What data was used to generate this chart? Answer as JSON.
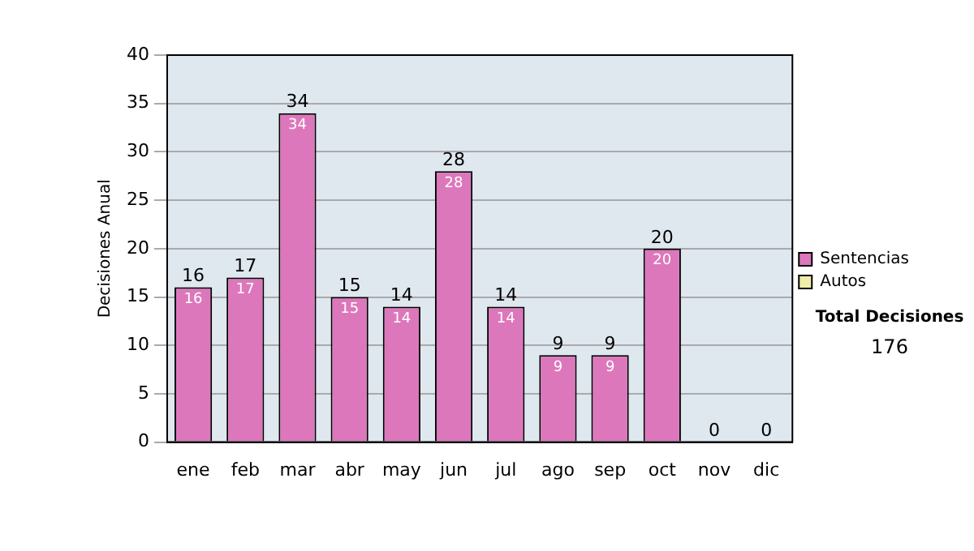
{
  "chart_data": {
    "type": "bar",
    "stacked": true,
    "ylabel": "Decisiones Anual",
    "categories": [
      "ene",
      "feb",
      "mar",
      "abr",
      "may",
      "jun",
      "jul",
      "ago",
      "sep",
      "oct",
      "nov",
      "dic"
    ],
    "series": [
      {
        "name": "Sentencias",
        "color": "#dd77bb",
        "values": [
          16,
          17,
          34,
          15,
          14,
          28,
          14,
          9,
          9,
          20,
          0,
          0
        ],
        "value_labels": [
          "16",
          "17",
          "34",
          "15",
          "14",
          "28",
          "14",
          "9",
          "9",
          "20",
          null,
          null
        ]
      },
      {
        "name": "Autos",
        "color": "#eeeeaa",
        "values": [
          0,
          0,
          0,
          0,
          0,
          0,
          0,
          0,
          0,
          0,
          0,
          0
        ]
      }
    ],
    "totals": [
      "16",
      "17",
      "34",
      "15",
      "14",
      "28",
      "14",
      "9",
      "9",
      "20",
      "0",
      "0"
    ],
    "ylim": [
      0,
      40
    ],
    "yticks": [
      0,
      5,
      10,
      15,
      20,
      25,
      30,
      35,
      40
    ],
    "grid": "y",
    "legend": "right",
    "annotations": [
      "Total Decisiones",
      "176"
    ]
  }
}
